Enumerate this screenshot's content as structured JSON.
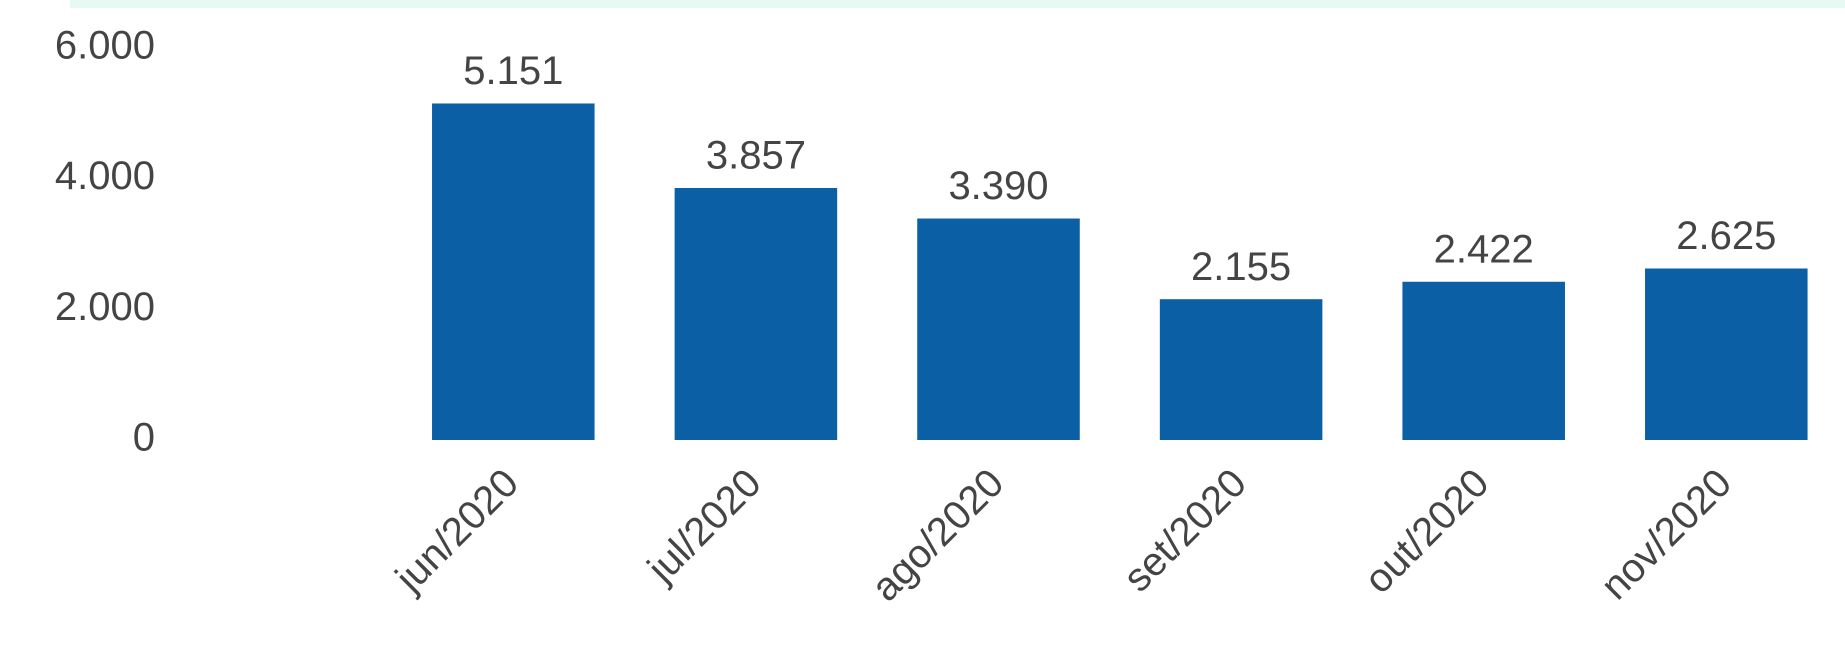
{
  "chart_data": {
    "type": "bar",
    "categories": [
      "jun/2020",
      "jul/2020",
      "ago/2020",
      "set/2020",
      "out/2020",
      "nov/2020"
    ],
    "values": [
      5151,
      3857,
      3390,
      2155,
      2422,
      2625
    ],
    "value_labels": [
      "5.151",
      "3.857",
      "3.390",
      "2.155",
      "2.422",
      "2.625"
    ],
    "color": "#0b5fa5",
    "ylim": [
      0,
      6000
    ],
    "yticks": [
      0,
      {
        "value": 2000,
        "label": "2.000"
      },
      {
        "value": 4000,
        "label": "4.000"
      },
      {
        "value": 6000,
        "label": "6.000"
      }
    ],
    "grid": false
  }
}
